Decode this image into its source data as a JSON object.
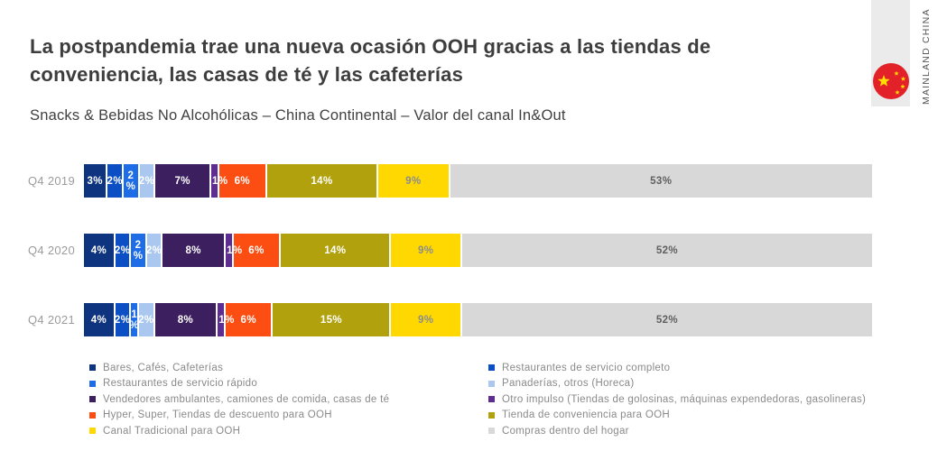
{
  "header": {
    "title": "La postpandemia trae una nueva ocasión OOH gracias a las tiendas de\nconveniencia, las casas de té y las cafeterías",
    "subtitle": "Snacks & Bebidas No Alcohólicas – China Continental – Valor del canal In&Out"
  },
  "region": {
    "label": "MAINLAND CHINA",
    "flag_red": "#e22128",
    "flag_star_yellow": "#ffde02"
  },
  "chart_data": {
    "type": "bar",
    "variant": "horizontal-stacked-100",
    "unit": "%",
    "categories": [
      "Q4 2019",
      "Q4 2020",
      "Q4 2021"
    ],
    "series": [
      {
        "name": "Bares, Cafés, Cafeterías",
        "color": "#0e337f",
        "label_color": "#ffffff",
        "values": [
          3,
          4,
          4
        ]
      },
      {
        "name": "Restaurantes de servicio completo",
        "color": "#0c4fc5",
        "label_color": "#ffffff",
        "values": [
          2,
          2,
          2
        ]
      },
      {
        "name": "Restaurantes de servicio rápido",
        "color": "#1e6ce6",
        "label_color": "#ffffff",
        "values": [
          2,
          2,
          1
        ]
      },
      {
        "name": "Panaderías, otros (Horeca)",
        "color": "#a9c7ef",
        "label_color": "#ffffff",
        "values": [
          2,
          2,
          2
        ]
      },
      {
        "name": "Vendedores ambulantes, camiones de comida, casas de té",
        "color": "#3c1f5e",
        "label_color": "#ffffff",
        "values": [
          7,
          8,
          8
        ]
      },
      {
        "name": "Otro impulso (Tiendas de golosinas, máquinas expendedoras, gasolineras)",
        "color": "#5e2d91",
        "label_color": "#ffffff",
        "values": [
          1,
          1,
          1
        ]
      },
      {
        "name": "Hyper, Super, Tiendas de descuento para OOH",
        "color": "#fc4e12",
        "label_color": "#ffffff",
        "values": [
          6,
          6,
          6
        ]
      },
      {
        "name": "Tienda de conveniencia para OOH",
        "color": "#b1a10d",
        "label_color": "#ffffff",
        "values": [
          14,
          14,
          15
        ]
      },
      {
        "name": "Canal Tradicional para OOH",
        "color": "#fed800",
        "label_color": "#8c8c8c",
        "values": [
          9,
          9,
          9
        ]
      },
      {
        "name": "Compras dentro del hogar",
        "color": "#d8d8d8",
        "label_color": "#606060",
        "values": [
          53,
          52,
          52
        ]
      }
    ],
    "bar_labels": [
      [
        "3%",
        "2%",
        "2\n%",
        "2%",
        "7%",
        "1%",
        "6%",
        "14%",
        "9%",
        "53%"
      ],
      [
        "4%",
        "2%",
        "2\n%",
        "2%",
        "8%",
        "1%",
        "6%",
        "14%",
        "9%",
        "52%"
      ],
      [
        "4%",
        "2%",
        "1\n%",
        "2%",
        "8%",
        "1%",
        "6%",
        "15%",
        "9%",
        "52%"
      ]
    ],
    "legend_position": "bottom",
    "legend_columns": [
      [
        0,
        2,
        4,
        6,
        8
      ],
      [
        1,
        3,
        5,
        7,
        9
      ]
    ]
  }
}
